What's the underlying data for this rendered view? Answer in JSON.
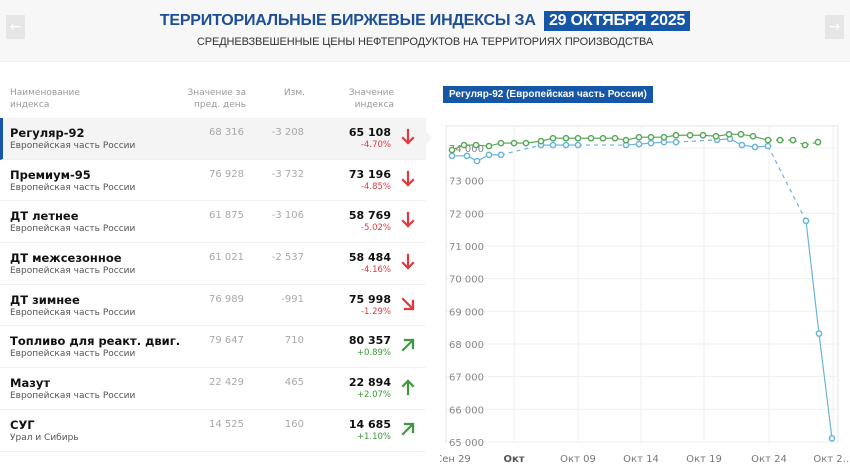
{
  "header": {
    "title_prefix": "ТЕРРИТОРИАЛЬНЫЕ БИРЖЕВЫЕ ИНДЕКСЫ ЗА",
    "title_date": "29 ОКТЯБРЯ 2025",
    "subtitle": "СРЕДНЕВЗВЕШЕННЫЕ ЦЕНЫ НЕФТЕПРОДУКТОВ НА ТЕРРИТОРИЯХ ПРОИЗВОДСТВА",
    "prev_icon": "arrow-left-icon",
    "next_icon": "arrow-right-icon",
    "prev_glyph": "←",
    "next_glyph": "→"
  },
  "table": {
    "headers": {
      "name_line1": "Наименование",
      "name_line2": "индекса",
      "prev_line1": "Значение за",
      "prev_line2": "пред. день",
      "change": "Изм.",
      "value_line1": "Значение",
      "value_line2": "индекса"
    },
    "rows": [
      {
        "name": "Регуляр-92",
        "region": "Европейская часть России",
        "prev": "68 316",
        "change": "-3 208",
        "value": "65 108",
        "pct": "-4.70%",
        "trend": "down",
        "icon": "arrow-down-icon"
      },
      {
        "name": "Премиум-95",
        "region": "Европейская часть России",
        "prev": "76 928",
        "change": "-3 732",
        "value": "73 196",
        "pct": "-4.85%",
        "trend": "down",
        "icon": "arrow-down-icon"
      },
      {
        "name": "ДТ летнее",
        "region": "Европейская часть России",
        "prev": "61 875",
        "change": "-3 106",
        "value": "58 769",
        "pct": "-5.02%",
        "trend": "down",
        "icon": "arrow-down-icon"
      },
      {
        "name": "ДТ межсезонное",
        "region": "Европейская часть России",
        "prev": "61 021",
        "change": "-2 537",
        "value": "58 484",
        "pct": "-4.16%",
        "trend": "down",
        "icon": "arrow-down-icon"
      },
      {
        "name": "ДТ зимнее",
        "region": "Европейская часть России",
        "prev": "76 989",
        "change": "-991",
        "value": "75 998",
        "pct": "-1.29%",
        "trend": "down-right",
        "icon": "arrow-down-right-icon"
      },
      {
        "name": "Топливо для реакт. двиг.",
        "region": "Европейская часть России",
        "prev": "79 647",
        "change": "710",
        "value": "80 357",
        "pct": "+0.89%",
        "trend": "up-right",
        "icon": "arrow-up-right-icon"
      },
      {
        "name": "Мазут",
        "region": "Европейская часть России",
        "prev": "22 429",
        "change": "465",
        "value": "22 894",
        "pct": "+2.07%",
        "trend": "up",
        "icon": "arrow-up-icon"
      },
      {
        "name": "СУГ",
        "region": "Урал и Сибирь",
        "prev": "14 525",
        "change": "160",
        "value": "14 685",
        "pct": "+1.10%",
        "trend": "up-right",
        "icon": "arrow-up-right-icon"
      }
    ]
  },
  "colors": {
    "brand_blue": "#1556a6",
    "title_blue": "#1d4e96",
    "negative": "#e0393e",
    "positive": "#3c9a3c",
    "series_blue": "#6ab3dc",
    "series_green": "#5aa85a"
  },
  "chart": {
    "tag": "Регуляр-92 (Европейская часть России)"
  },
  "chart_data": {
    "type": "line",
    "title": "Регуляр-92 (Европейская часть России)",
    "xlabel": "",
    "ylabel": "",
    "ylim": [
      65000,
      74300
    ],
    "y_ticks": [
      "74 000",
      "73 000",
      "72 000",
      "71 000",
      "70 000",
      "69 000",
      "68 000",
      "67 000",
      "66 000",
      "65 000"
    ],
    "x_ticks": [
      "Сен 29",
      "Окт",
      "Окт 09",
      "Окт 14",
      "Окт 19",
      "Окт 24",
      "Окт 2…"
    ],
    "grid": true,
    "legend": "none",
    "series": [
      {
        "name": "Регуляр-92 (blue)",
        "color": "#6ab3dc",
        "points": [
          {
            "x": 452,
            "v": 73760
          },
          {
            "x": 467,
            "v": 73760
          },
          {
            "x": 477,
            "v": 73600
          },
          {
            "x": 489,
            "v": 73790
          },
          {
            "x": 501,
            "v": 73790
          },
          {
            "x": 541,
            "v": 74090
          },
          {
            "x": 553,
            "v": 74090
          },
          {
            "x": 566,
            "v": 74090
          },
          {
            "x": 578,
            "v": 74090
          },
          {
            "x": 626,
            "v": 74090
          },
          {
            "x": 639,
            "v": 74120
          },
          {
            "x": 651,
            "v": 74150
          },
          {
            "x": 664,
            "v": 74180
          },
          {
            "x": 676,
            "v": 74180
          },
          {
            "x": 717,
            "v": 74250
          },
          {
            "x": 730,
            "v": 74280
          },
          {
            "x": 742,
            "v": 74090
          },
          {
            "x": 755,
            "v": 74030
          },
          {
            "x": 768,
            "v": 74060
          },
          {
            "x": 806,
            "v": 71770
          },
          {
            "x": 819,
            "v": 68316
          },
          {
            "x": 832,
            "v": 65108
          }
        ]
      },
      {
        "name": "Регуляр-92 (green)",
        "color": "#5aa85a",
        "points": [
          {
            "x": 452,
            "v": 73940
          },
          {
            "x": 464,
            "v": 74090
          },
          {
            "x": 476,
            "v": 74090
          },
          {
            "x": 489,
            "v": 74060
          },
          {
            "x": 501,
            "v": 74150
          },
          {
            "x": 514,
            "v": 74150
          },
          {
            "x": 526,
            "v": 74150
          },
          {
            "x": 541,
            "v": 74210
          },
          {
            "x": 553,
            "v": 74300
          },
          {
            "x": 566,
            "v": 74300
          },
          {
            "x": 578,
            "v": 74300
          },
          {
            "x": 591,
            "v": 74300
          },
          {
            "x": 603,
            "v": 74300
          },
          {
            "x": 615,
            "v": 74300
          },
          {
            "x": 626,
            "v": 74240
          },
          {
            "x": 639,
            "v": 74330
          },
          {
            "x": 651,
            "v": 74330
          },
          {
            "x": 664,
            "v": 74330
          },
          {
            "x": 676,
            "v": 74390
          },
          {
            "x": 690,
            "v": 74390
          },
          {
            "x": 703,
            "v": 74390
          },
          {
            "x": 716,
            "v": 74360
          },
          {
            "x": 729,
            "v": 74420
          },
          {
            "x": 741,
            "v": 74420
          },
          {
            "x": 753,
            "v": 74360
          },
          {
            "x": 768,
            "v": 74240
          },
          {
            "x": 780,
            "v": 74240
          },
          {
            "x": 793,
            "v": 74240
          },
          {
            "x": 805,
            "v": 74090
          },
          {
            "x": 818,
            "v": 74180
          }
        ]
      }
    ]
  }
}
